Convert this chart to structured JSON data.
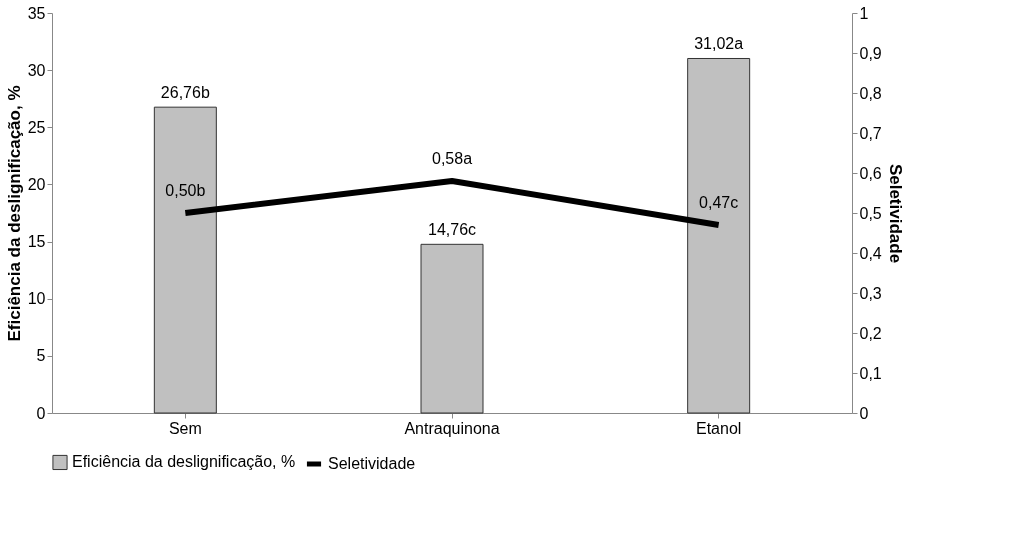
{
  "chart_data": {
    "type": "bar",
    "categories": [
      "Sem",
      "Antraquinona",
      "Etanol"
    ],
    "ylabel": "Eficiência da deslignificação, %",
    "y2label": "Seletividade",
    "ylim": [
      0,
      35
    ],
    "yticks": [
      0,
      5,
      10,
      15,
      20,
      25,
      30,
      35
    ],
    "y2lim": [
      0,
      1
    ],
    "y2ticks": [
      0,
      {
        "value": 0.1,
        "label": "0,1"
      },
      {
        "value": 0.2,
        "label": "0,2"
      },
      {
        "value": 0.3,
        "label": "0,3"
      },
      {
        "value": 0.4,
        "label": "0,4"
      },
      {
        "value": 0.5,
        "label": "0,5"
      },
      {
        "value": 0.6,
        "label": "0,6"
      },
      {
        "value": 0.7,
        "label": "0,7"
      },
      {
        "value": 0.8,
        "label": "0,8"
      },
      {
        "value": 0.9,
        "label": "0,9"
      },
      1
    ],
    "grid": false,
    "legend": "bottom",
    "series": [
      {
        "name": "Eficiência da deslignificação, %",
        "color": "#c0c0c0",
        "values": [
          26.76,
          14.76,
          31.02
        ],
        "value_labels": [
          "26,76b",
          "14,76c",
          "31,02a"
        ]
      },
      {
        "name": "Seletividade",
        "type": "line",
        "axis": "y2",
        "color": "#000000",
        "values": [
          0.5,
          0.58,
          0.47
        ],
        "value_labels": [
          "0,50b",
          "0,58a",
          "0,47c"
        ]
      }
    ]
  }
}
